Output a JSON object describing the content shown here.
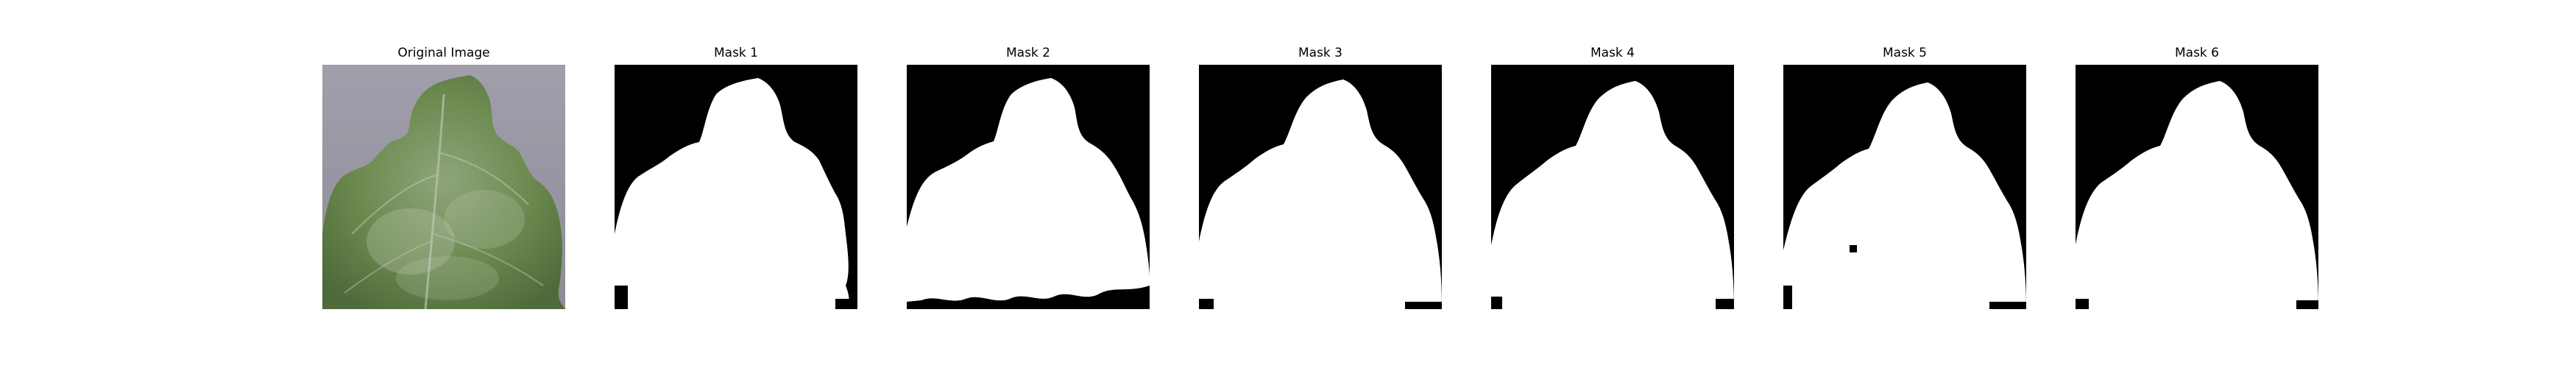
{
  "panels": [
    {
      "title": "Original Image",
      "kind": "photo"
    },
    {
      "title": "Mask 1",
      "kind": "mask"
    },
    {
      "title": "Mask 2",
      "kind": "mask"
    },
    {
      "title": "Mask 3",
      "kind": "mask"
    },
    {
      "title": "Mask 4",
      "kind": "mask"
    },
    {
      "title": "Mask 5",
      "kind": "mask"
    },
    {
      "title": "Mask 6",
      "kind": "mask"
    }
  ],
  "colors": {
    "photo_background": "#8e8d99",
    "leaf_dark": "#4f6a3a",
    "leaf_mid": "#6c8a4f",
    "leaf_light": "#a7b79b",
    "mask_background": "#000000",
    "mask_foreground": "#ffffff"
  }
}
